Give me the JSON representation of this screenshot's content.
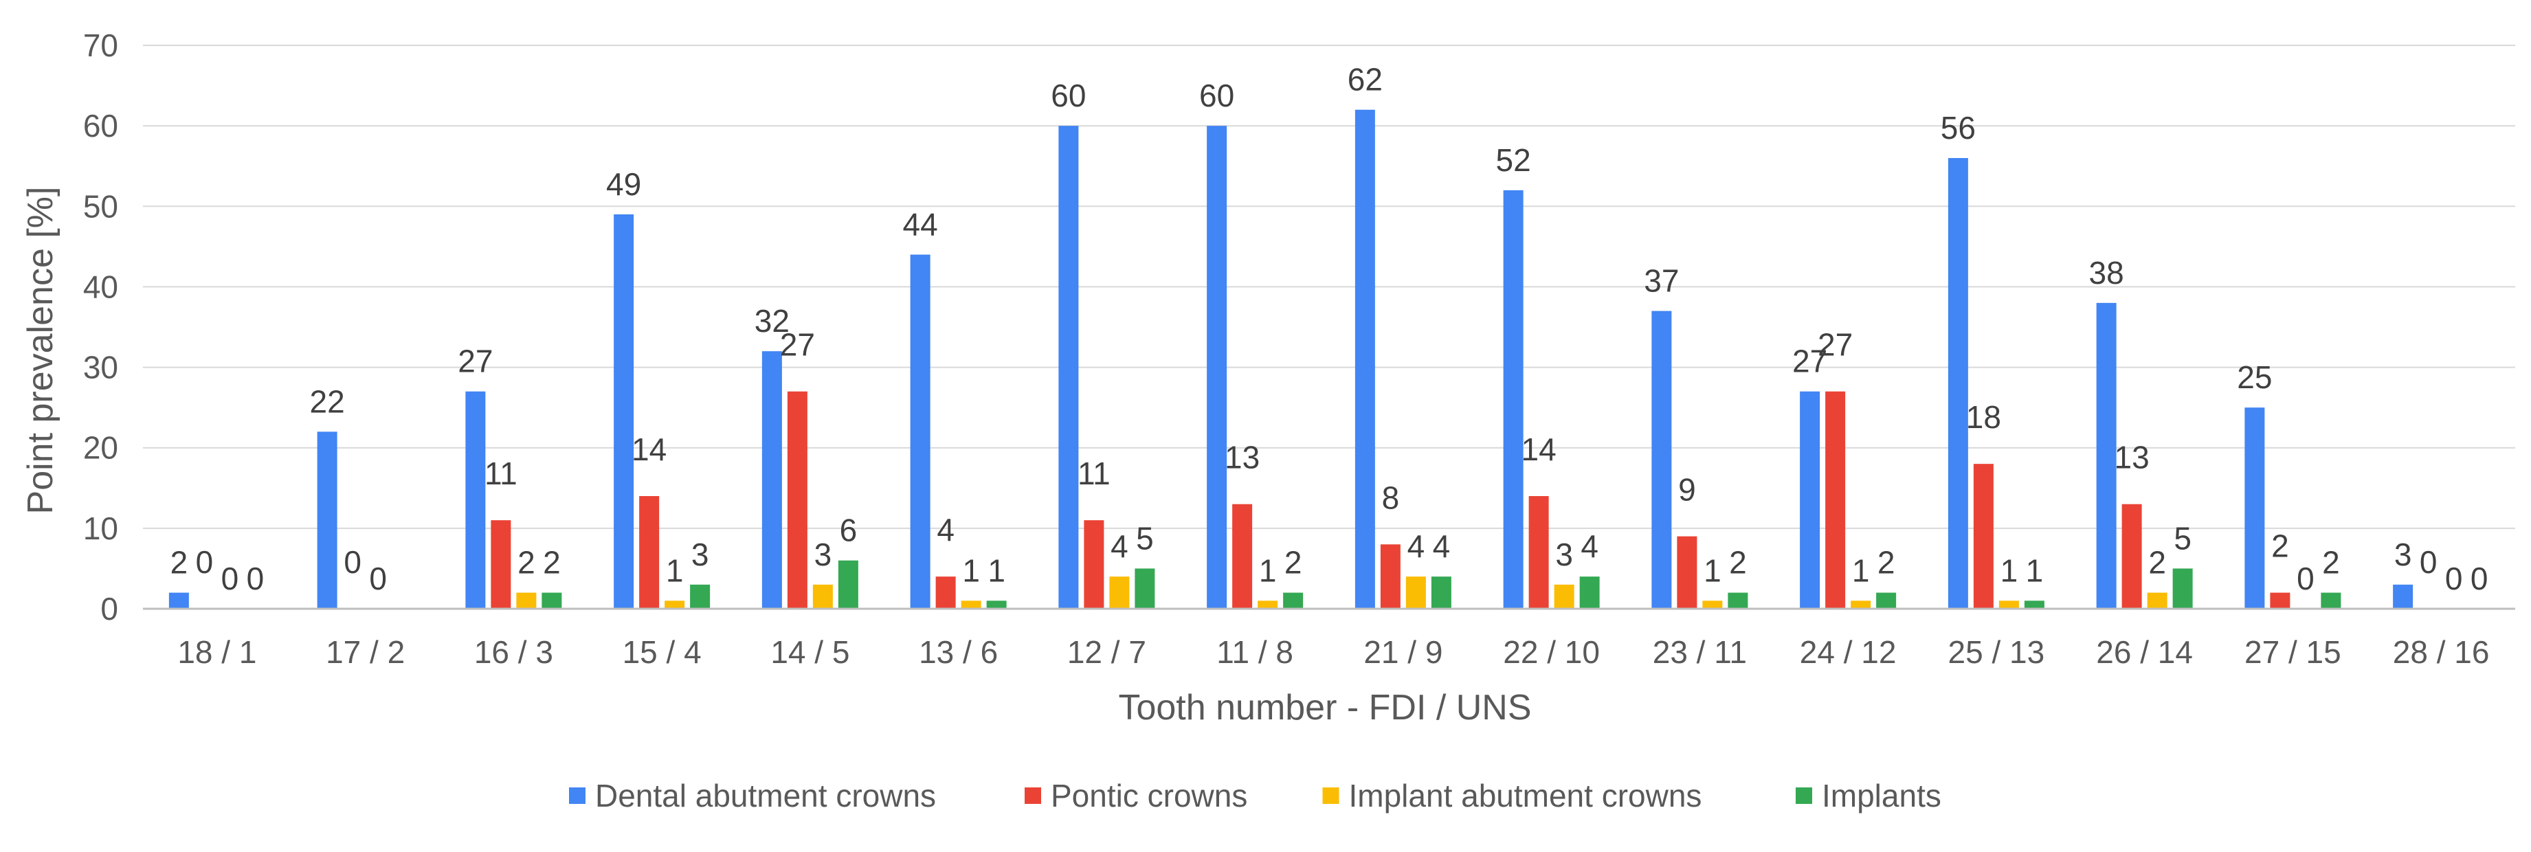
{
  "chart_data": {
    "type": "bar",
    "title": "",
    "xlabel": "Tooth number - FDI / UNS",
    "ylabel": "Point prevalence [%]",
    "ylim": [
      0,
      70
    ],
    "yticks": [
      0,
      10,
      20,
      30,
      40,
      50,
      60,
      70
    ],
    "grid": true,
    "legend_position": "bottom",
    "categories": [
      "18 / 1",
      "17 / 2",
      "16 / 3",
      "15 / 4",
      "14 / 5",
      "13 / 6",
      "12 / 7",
      "11 / 8",
      "21 / 9",
      "22 / 10",
      "23 / 11",
      "24 / 12",
      "25 / 13",
      "26 / 14",
      "27 / 15",
      "28 / 16"
    ],
    "series": [
      {
        "name": "Dental abutment crowns",
        "color": "#4285F4",
        "values": [
          2,
          22,
          27,
          49,
          32,
          44,
          60,
          60,
          62,
          52,
          37,
          27,
          56,
          38,
          25,
          3
        ]
      },
      {
        "name": "Pontic crowns",
        "color": "#EA4335",
        "values": [
          0,
          0,
          11,
          14,
          27,
          4,
          11,
          13,
          8,
          14,
          9,
          27,
          18,
          13,
          2,
          0
        ]
      },
      {
        "name": "Implant abutment crowns",
        "color": "#FBBC04",
        "values": [
          0,
          0,
          2,
          1,
          3,
          1,
          4,
          1,
          4,
          3,
          1,
          1,
          1,
          2,
          0,
          0
        ]
      },
      {
        "name": "Implants",
        "color": "#34A853",
        "values": [
          0,
          0,
          2,
          3,
          6,
          1,
          5,
          2,
          4,
          4,
          2,
          2,
          1,
          5,
          2,
          0
        ]
      }
    ],
    "data_labels": [
      [
        2,
        22,
        27,
        49,
        32,
        44,
        60,
        60,
        62,
        52,
        37,
        27,
        56,
        38,
        25,
        3
      ],
      [
        0,
        0,
        11,
        14,
        27,
        4,
        11,
        13,
        8,
        14,
        9,
        27,
        18,
        13,
        2,
        0
      ],
      [
        0,
        0,
        2,
        1,
        3,
        1,
        4,
        1,
        4,
        3,
        1,
        1,
        1,
        2,
        0,
        0
      ],
      [
        0,
        "",
        2,
        3,
        6,
        1,
        5,
        2,
        4,
        4,
        2,
        2,
        1,
        5,
        2,
        0
      ]
    ],
    "colors": {
      "grid": "#D9D9D9",
      "axis": "#BFBFBF",
      "text": "#595959"
    }
  }
}
